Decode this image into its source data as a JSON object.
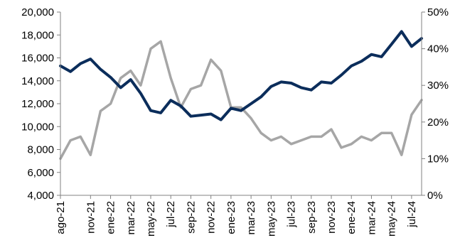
{
  "chart_data": {
    "type": "line",
    "title": "",
    "xlabel": "",
    "ylabel": "",
    "y_left": {
      "range": [
        4000,
        20000
      ],
      "ticks": [
        4000,
        6000,
        8000,
        10000,
        12000,
        14000,
        16000,
        18000,
        20000
      ],
      "tick_labels": [
        "4,000",
        "6,000",
        "8,000",
        "10,000",
        "12,000",
        "14,000",
        "16,000",
        "18,000",
        "20,000"
      ]
    },
    "y_right": {
      "range": [
        0,
        50
      ],
      "ticks": [
        0,
        10,
        20,
        30,
        40,
        50
      ],
      "tick_labels": [
        "0%",
        "10%",
        "20%",
        "30%",
        "40%",
        "50%"
      ]
    },
    "x_axis": {
      "range": [
        "2021-08",
        "2024-08"
      ],
      "ticks": [
        "2021-08",
        "2021-11",
        "2022-01",
        "2022-03",
        "2022-05",
        "2022-07",
        "2022-09",
        "2022-11",
        "2023-01",
        "2023-03",
        "2023-05",
        "2023-07",
        "2023-09",
        "2023-11",
        "2024-01",
        "2024-03",
        "2024-05",
        "2024-07"
      ],
      "tick_labels": [
        "ago-21",
        "nov-21",
        "ene-22",
        "mar-22",
        "may-22",
        "jul-22",
        "sep-22",
        "nov-22",
        "ene-23",
        "mar-23",
        "may-23",
        "jul-23",
        "sep-23",
        "nov-23",
        "ene-24",
        "mar-24",
        "may-24",
        "jul-24"
      ]
    },
    "grid": false,
    "legend": "none",
    "series": [
      {
        "axis": "left",
        "color": "#0b2d5b",
        "x": [
          "2021-08",
          "2021-09",
          "2021-10",
          "2021-11",
          "2021-12",
          "2022-01",
          "2022-02",
          "2022-03",
          "2022-04",
          "2022-05",
          "2022-06",
          "2022-07",
          "2022-08",
          "2022-09",
          "2022-10",
          "2022-11",
          "2022-12",
          "2023-01",
          "2023-02",
          "2023-03",
          "2023-04",
          "2023-05",
          "2023-06",
          "2023-07",
          "2023-08",
          "2023-09",
          "2023-10",
          "2023-11",
          "2023-12",
          "2024-01",
          "2024-02",
          "2024-03",
          "2024-04",
          "2024-05",
          "2024-06",
          "2024-07",
          "2024-08"
        ],
        "values": [
          15300,
          14800,
          15500,
          15900,
          15000,
          14300,
          13400,
          14100,
          12900,
          11400,
          11200,
          12300,
          11800,
          10900,
          11000,
          11100,
          10600,
          11600,
          11400,
          12000,
          12600,
          13500,
          13900,
          13800,
          13400,
          13200,
          13900,
          13800,
          14500,
          15300,
          15700,
          16300,
          16100,
          17200,
          18300,
          17000,
          17700
        ]
      },
      {
        "axis": "right",
        "color": "#a6a6a6",
        "x": [
          "2021-08",
          "2021-09",
          "2021-10",
          "2021-11",
          "2021-12",
          "2022-01",
          "2022-02",
          "2022-03",
          "2022-04",
          "2022-05",
          "2022-06",
          "2022-07",
          "2022-08",
          "2022-09",
          "2022-10",
          "2022-11",
          "2022-12",
          "2023-01",
          "2023-02",
          "2023-03",
          "2023-04",
          "2023-05",
          "2023-06",
          "2023-07",
          "2023-08",
          "2023-09",
          "2023-10",
          "2023-11",
          "2023-12",
          "2024-01",
          "2024-02",
          "2024-03",
          "2024-04",
          "2024-05",
          "2024-06",
          "2024-07",
          "2024-08"
        ],
        "values": [
          10,
          15,
          16,
          11,
          23,
          25,
          32,
          34,
          30,
          40,
          42,
          32,
          24,
          29,
          30,
          37,
          34,
          24,
          24,
          21,
          17,
          15,
          16,
          14,
          15,
          16,
          16,
          18,
          13,
          14,
          16,
          15,
          17,
          17,
          11,
          22,
          26
        ]
      }
    ]
  }
}
